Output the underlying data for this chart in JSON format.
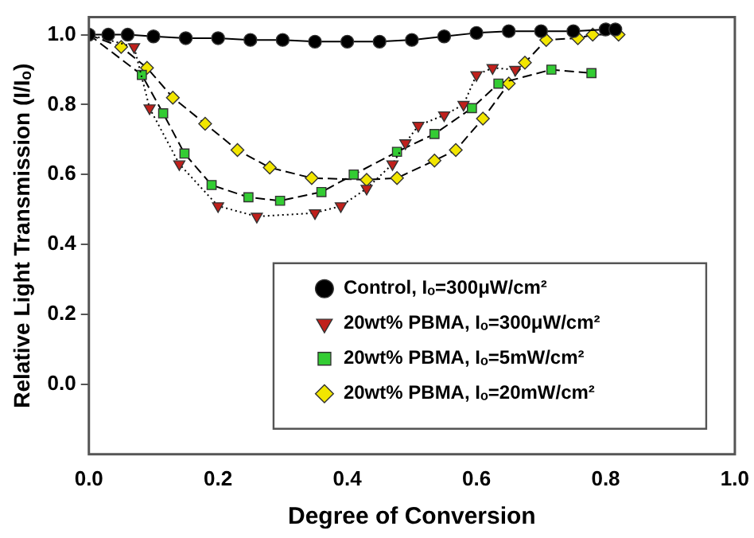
{
  "chart_data": {
    "type": "line",
    "xlabel": "Degree of Conversion",
    "ylabel": "Relative Light Transmission (I/Iₒ)",
    "xlim": [
      0,
      1
    ],
    "ylim": [
      -0.2,
      1.05
    ],
    "xticks": [
      {
        "value": 0,
        "label": "0.0"
      },
      {
        "value": 0.2,
        "label": "0.2"
      },
      {
        "value": 0.4,
        "label": "0.4"
      },
      {
        "value": 0.6,
        "label": "0.6"
      },
      {
        "value": 0.8,
        "label": "0.8"
      },
      {
        "value": 1,
        "label": "1.0"
      }
    ],
    "yticks": [
      {
        "value": 0,
        "label": "0.0"
      },
      {
        "value": 0.2,
        "label": "0.2"
      },
      {
        "value": 0.4,
        "label": "0.4"
      },
      {
        "value": 0.6,
        "label": "0.6"
      },
      {
        "value": 0.8,
        "label": "0.8"
      },
      {
        "value": 1,
        "label": "1.0"
      }
    ],
    "grid": false,
    "legend": "bottom right",
    "series": [
      {
        "name": "Control, Iₒ=300μW/cm²",
        "color": "#000000",
        "marker": "circle",
        "line_style": "solid",
        "x": [
          0,
          0.03,
          0.06,
          0.1,
          0.15,
          0.2,
          0.25,
          0.3,
          0.35,
          0.4,
          0.45,
          0.5,
          0.55,
          0.6,
          0.65,
          0.7,
          0.75,
          0.8,
          0.815
        ],
        "values": [
          1.0,
          1.0,
          1.0,
          0.995,
          0.99,
          0.99,
          0.985,
          0.985,
          0.98,
          0.98,
          0.98,
          0.985,
          0.995,
          1.005,
          1.01,
          1.01,
          1.01,
          1.015,
          1.015
        ]
      },
      {
        "name": "20wt% PBMA, Iₒ=300μW/cm²",
        "color": "#c0201c",
        "marker": "triangle",
        "line_style": "dotted",
        "x": [
          0,
          0.07,
          0.094,
          0.14,
          0.2,
          0.26,
          0.35,
          0.39,
          0.43,
          0.47,
          0.49,
          0.51,
          0.55,
          0.58,
          0.6,
          0.625,
          0.66
        ],
        "values": [
          1.0,
          0.965,
          0.79,
          0.63,
          0.51,
          0.48,
          0.49,
          0.51,
          0.56,
          0.63,
          0.69,
          0.74,
          0.77,
          0.8,
          0.885,
          0.905,
          0.9
        ]
      },
      {
        "name": "20wt% PBMA, Iₒ=5mW/cm²",
        "color": "#33cc33",
        "marker": "square",
        "line_style": "dashed",
        "x": [
          0,
          0.082,
          0.115,
          0.148,
          0.19,
          0.247,
          0.296,
          0.36,
          0.41,
          0.477,
          0.535,
          0.593,
          0.634,
          0.716,
          0.778
        ],
        "values": [
          1.0,
          0.885,
          0.775,
          0.66,
          0.57,
          0.535,
          0.525,
          0.55,
          0.6,
          0.665,
          0.716,
          0.79,
          0.86,
          0.9,
          0.89
        ]
      },
      {
        "name": "20wt% PBMA, Iₒ=20mW/cm²",
        "color": "#f2e600",
        "marker": "diamond",
        "line_style": "dashed",
        "x": [
          0,
          0.05,
          0.09,
          0.13,
          0.18,
          0.23,
          0.28,
          0.345,
          0.43,
          0.477,
          0.535,
          0.568,
          0.61,
          0.65,
          0.675,
          0.708,
          0.757,
          0.78,
          0.82
        ],
        "values": [
          1.0,
          0.965,
          0.905,
          0.82,
          0.745,
          0.67,
          0.62,
          0.59,
          0.585,
          0.59,
          0.64,
          0.67,
          0.76,
          0.86,
          0.92,
          0.985,
          0.99,
          1.0,
          1.0
        ]
      }
    ]
  }
}
